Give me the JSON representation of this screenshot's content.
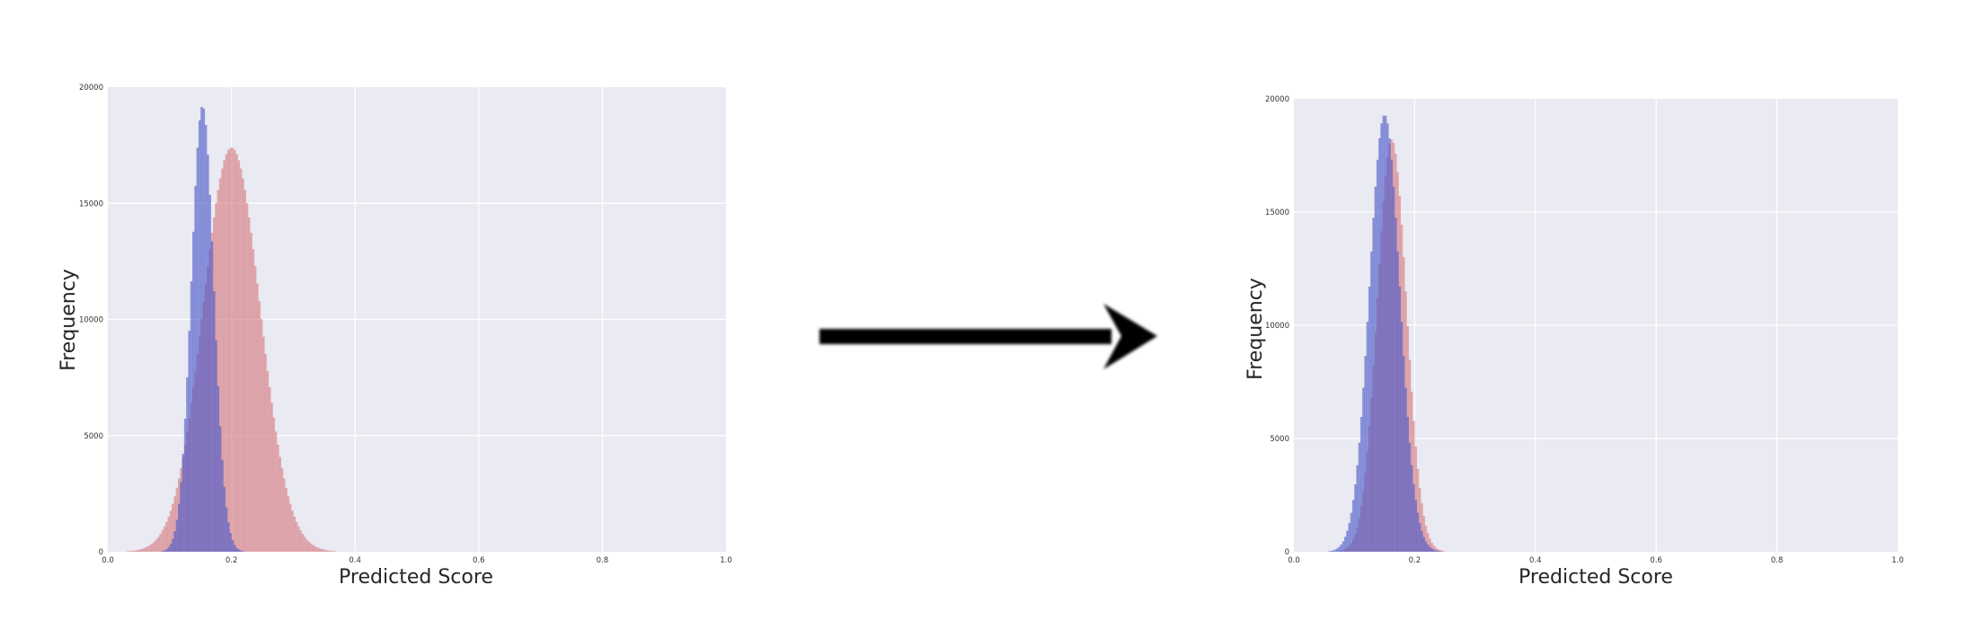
{
  "chart_data": [
    {
      "type": "histogram",
      "title": "",
      "xlabel": "Predicted Score",
      "ylabel": "Frequency",
      "xlim": [
        0.0,
        1.0
      ],
      "ylim": [
        0,
        20000
      ],
      "xticks": [
        "0.0",
        "0.2",
        "0.4",
        "0.6",
        "0.8",
        "1.0"
      ],
      "yticks": [
        "0",
        "5000",
        "10000",
        "15000",
        "20000"
      ],
      "grid": true,
      "legend": "none",
      "series": [
        {
          "color": "#d67a80",
          "opacity": 0.6,
          "peak_x": 0.2,
          "peak_count": 17400,
          "spread": 0.046,
          "support": [
            0.0,
            0.4
          ]
        },
        {
          "color": "#4b59c8",
          "opacity": 0.6,
          "peak_x": 0.153,
          "peak_count": 19200,
          "spread": 0.018,
          "support": [
            0.05,
            0.22
          ]
        }
      ]
    },
    {
      "type": "histogram",
      "title": "",
      "xlabel": "Predicted Score",
      "ylabel": "Frequency",
      "xlim": [
        0.0,
        1.0
      ],
      "ylim": [
        0,
        20000
      ],
      "xticks": [
        "0.0",
        "0.2",
        "0.4",
        "0.6",
        "0.8",
        "1.0"
      ],
      "yticks": [
        "0",
        "5000",
        "10000",
        "15000",
        "20000"
      ],
      "grid": true,
      "legend": "none",
      "series": [
        {
          "color": "#d67a80",
          "opacity": 0.6,
          "peak_x": 0.162,
          "peak_count": 18200,
          "spread": 0.024,
          "support": [
            0.05,
            0.28
          ]
        },
        {
          "color": "#4b59c8",
          "opacity": 0.6,
          "peak_x": 0.15,
          "peak_count": 19300,
          "spread": 0.025,
          "support": [
            0.03,
            0.27
          ]
        }
      ]
    }
  ]
}
